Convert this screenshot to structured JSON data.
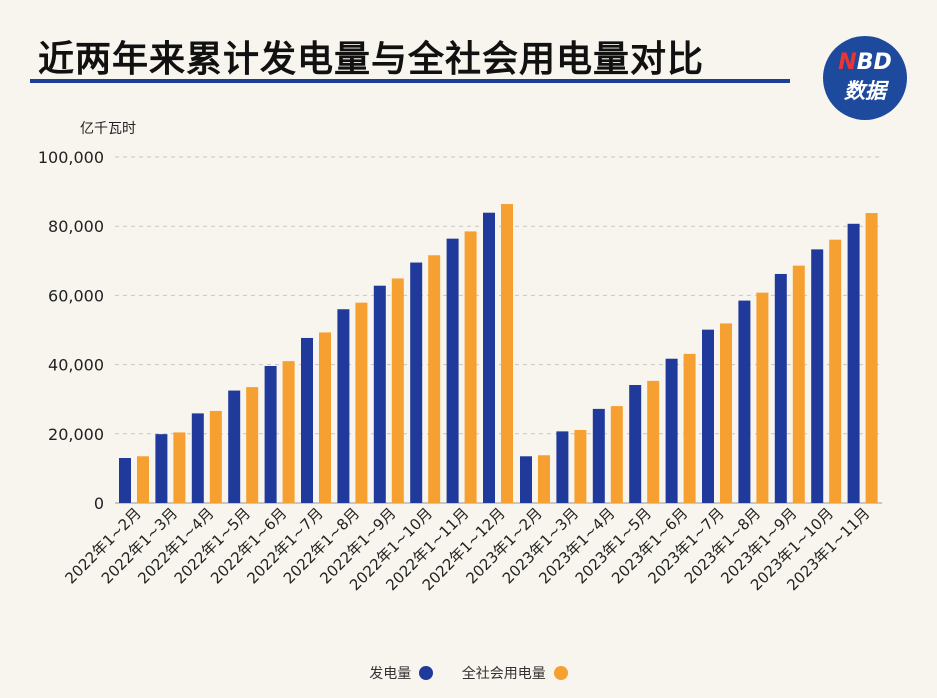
{
  "title": "近两年来累计发电量与全社会用电量对比",
  "logo": {
    "line1_accent": "N",
    "line1_rest": "BD",
    "line2": "数据"
  },
  "chart_data": {
    "type": "bar",
    "ylabel": "亿千瓦时",
    "ylim": [
      0,
      100000
    ],
    "yticks": [
      "0",
      "20,000",
      "40,000",
      "60,000",
      "80,000",
      "100,000"
    ],
    "ytick_values": [
      0,
      20000,
      40000,
      60000,
      80000,
      100000
    ],
    "grid": true,
    "legend_position": "bottom",
    "categories": [
      "2022年1~2月",
      "2022年1~3月",
      "2022年1~4月",
      "2022年1~5月",
      "2022年1~6月",
      "2022年1~7月",
      "2022年1~8月",
      "2022年1~9月",
      "2022年1~10月",
      "2022年1~11月",
      "2022年1~12月",
      "2023年1~2月",
      "2023年1~3月",
      "2023年1~4月",
      "2023年1~5月",
      "2023年1~6月",
      "2023年1~7月",
      "2023年1~8月",
      "2023年1~9月",
      "2023年1~10月",
      "2023年1~11月"
    ],
    "series": [
      {
        "name": "发电量",
        "color": "#1f3a9a",
        "values": [
          13000,
          19900,
          25900,
          32500,
          39600,
          47700,
          56000,
          62800,
          69500,
          76400,
          83900,
          13500,
          20700,
          27200,
          34100,
          41700,
          50100,
          58500,
          66200,
          73300,
          80700
        ]
      },
      {
        "name": "全社会用电量",
        "color": "#f5a030",
        "values": [
          13500,
          20400,
          26600,
          33500,
          41000,
          49300,
          57900,
          64900,
          71600,
          78500,
          86400,
          13800,
          21100,
          28000,
          35300,
          43100,
          51900,
          60800,
          68600,
          76100,
          83800
        ]
      }
    ]
  }
}
